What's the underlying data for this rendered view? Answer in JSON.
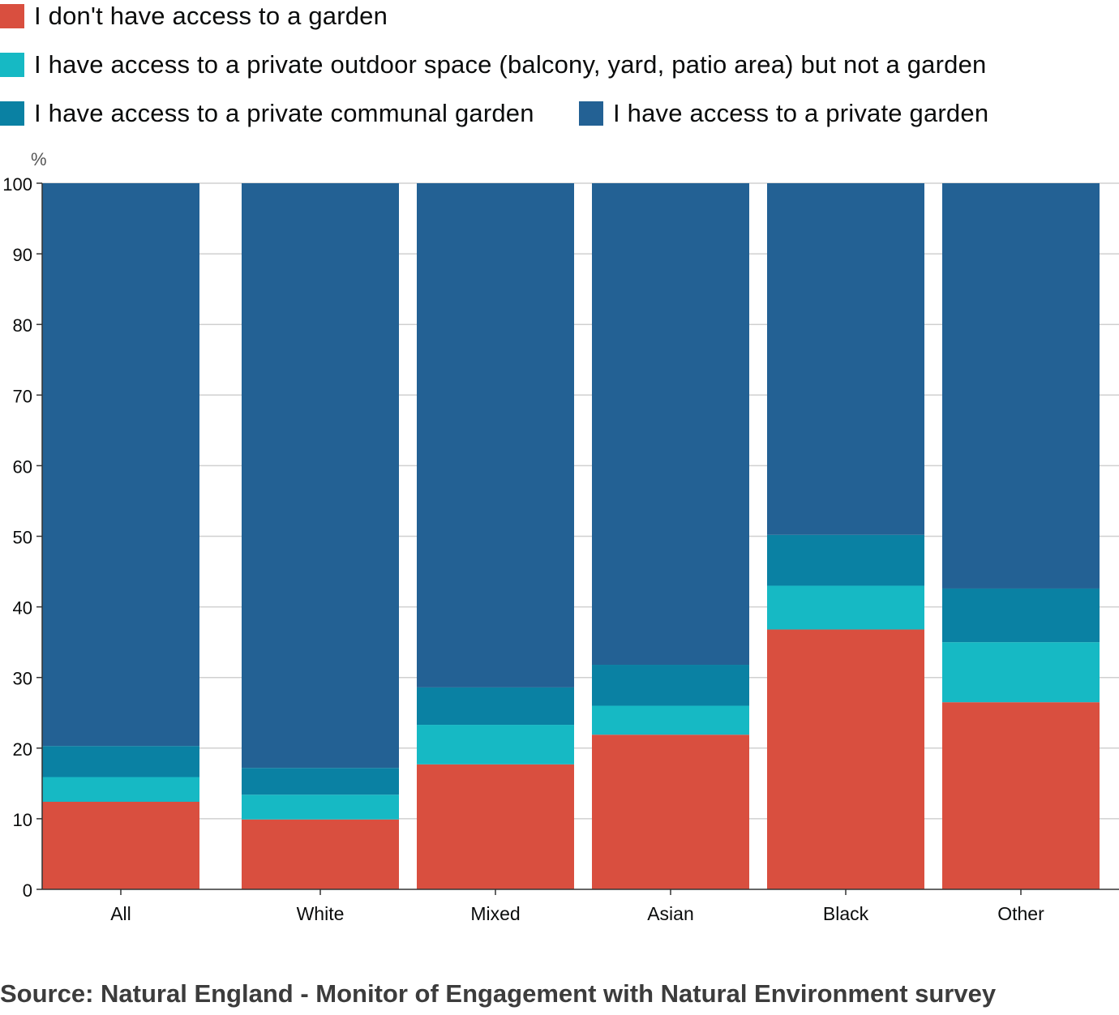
{
  "legend": [
    {
      "label": "I don't have access to a garden",
      "color": "#d94f3f"
    },
    {
      "label": "I have access to a private outdoor space (balcony, yard, patio area) but not a garden",
      "color": "#16b9c4"
    },
    {
      "label": "I have access to a private communal garden",
      "color": "#0a81a3"
    },
    {
      "label": "I have access to a private garden",
      "color": "#236194"
    }
  ],
  "chart_data": {
    "type": "bar",
    "stacked": true,
    "categories": [
      "All",
      "White",
      "Mixed",
      "Asian",
      "Black",
      "Other"
    ],
    "series": [
      {
        "name": "I don't have access to a garden",
        "color": "#d94f3f",
        "values": [
          12.4,
          9.9,
          17.7,
          21.9,
          36.8,
          26.5
        ]
      },
      {
        "name": "I have access to a private outdoor space (balcony, yard, patio area) but not a garden",
        "color": "#16b9c4",
        "values": [
          3.5,
          3.5,
          5.6,
          4.1,
          6.2,
          8.5
        ]
      },
      {
        "name": "I have access to a private communal garden",
        "color": "#0a81a3",
        "values": [
          4.4,
          3.8,
          5.3,
          5.8,
          7.2,
          7.6
        ]
      },
      {
        "name": "I have access to a private garden",
        "color": "#236194",
        "values": [
          79.7,
          82.8,
          71.4,
          68.2,
          49.8,
          57.4
        ]
      }
    ],
    "ylabel": "%",
    "ylim": [
      0,
      100
    ],
    "yticks": [
      0,
      10,
      20,
      30,
      40,
      50,
      60,
      70,
      80,
      90,
      100
    ],
    "grid": true,
    "legend_position": "top"
  },
  "source": "Source: Natural England - Monitor of Engagement with Natural Environment survey"
}
